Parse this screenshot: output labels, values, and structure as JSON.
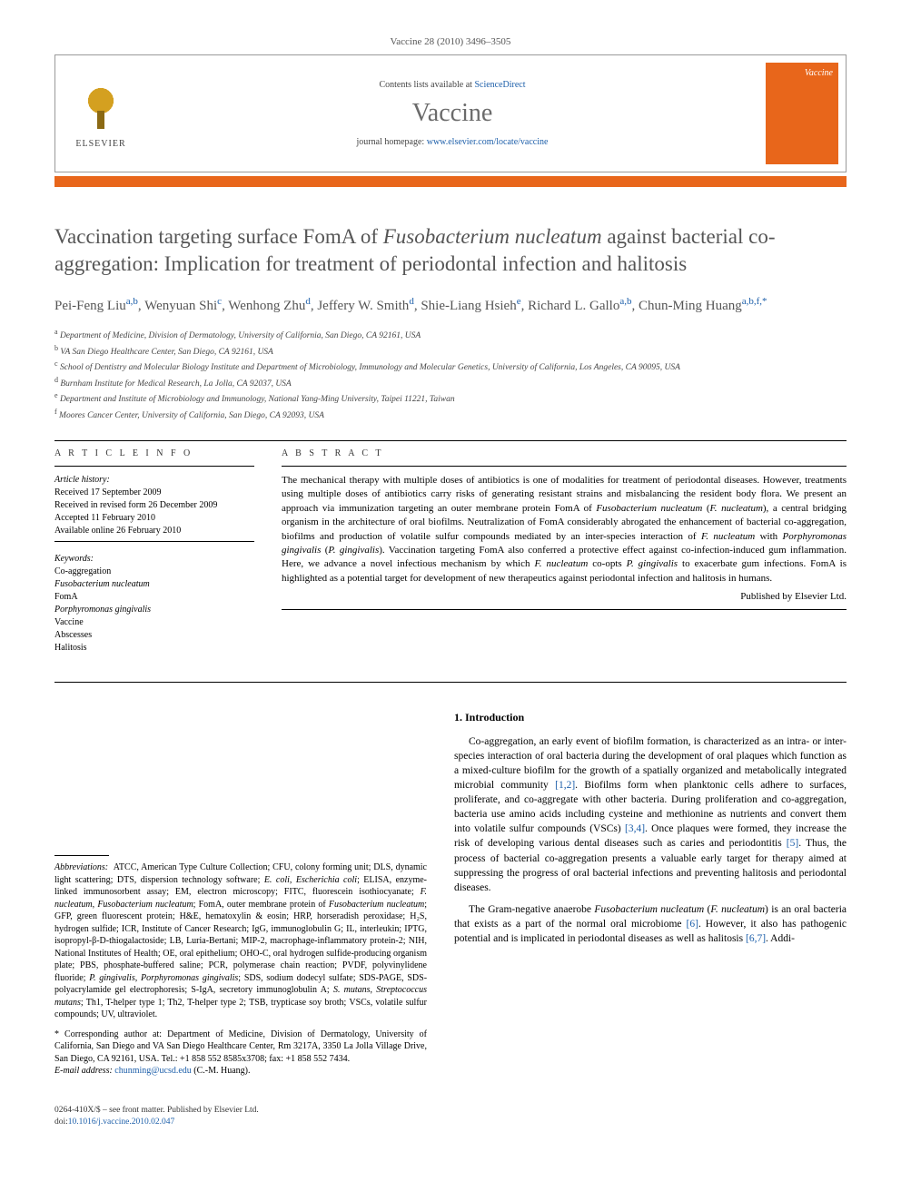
{
  "journal_ref": "Vaccine 28 (2010) 3496–3505",
  "header": {
    "contents_prefix": "Contents lists available at ",
    "contents_link": "ScienceDirect",
    "journal_name": "Vaccine",
    "homepage_prefix": "journal homepage: ",
    "homepage_link": "www.elsevier.com/locate/vaccine",
    "elsevier": "ELSEVIER",
    "cover_label": "Vaccine"
  },
  "title_part1": "Vaccination targeting surface FomA of ",
  "title_italic": "Fusobacterium nucleatum",
  "title_part2": " against bacterial co-aggregation: Implication for treatment of periodontal infection and halitosis",
  "authors_html": "Pei-Feng Liu|a,b|, Wenyuan Shi|c|, Wenhong Zhu|d|, Jeffery W. Smith|d|, Shie-Liang Hsieh|e|, Richard L. Gallo|a,b|, Chun-Ming Huang|a,b,f,*|",
  "authors": [
    {
      "name": "Pei-Feng Liu",
      "aff": "a,b"
    },
    {
      "name": "Wenyuan Shi",
      "aff": "c"
    },
    {
      "name": "Wenhong Zhu",
      "aff": "d"
    },
    {
      "name": "Jeffery W. Smith",
      "aff": "d"
    },
    {
      "name": "Shie-Liang Hsieh",
      "aff": "e"
    },
    {
      "name": "Richard L. Gallo",
      "aff": "a,b"
    },
    {
      "name": "Chun-Ming Huang",
      "aff": "a,b,f,*"
    }
  ],
  "affiliations": [
    {
      "sup": "a",
      "text": "Department of Medicine, Division of Dermatology, University of California, San Diego, CA 92161, USA"
    },
    {
      "sup": "b",
      "text": "VA San Diego Healthcare Center, San Diego, CA 92161, USA"
    },
    {
      "sup": "c",
      "text": "School of Dentistry and Molecular Biology Institute and Department of Microbiology, Immunology and Molecular Genetics, University of California, Los Angeles, CA 90095, USA"
    },
    {
      "sup": "d",
      "text": "Burnham Institute for Medical Research, La Jolla, CA 92037, USA"
    },
    {
      "sup": "e",
      "text": "Department and Institute of Microbiology and Immunology, National Yang-Ming University, Taipei 11221, Taiwan"
    },
    {
      "sup": "f",
      "text": "Moores Cancer Center, University of California, San Diego, CA 92093, USA"
    }
  ],
  "article_info": {
    "label": "A R T I C L E   I N F O",
    "history_label": "Article history:",
    "received": "Received 17 September 2009",
    "revised": "Received in revised form 26 December 2009",
    "accepted": "Accepted 11 February 2010",
    "online": "Available online 26 February 2010",
    "keywords_label": "Keywords:",
    "keywords": [
      "Co-aggregation",
      "Fusobacterium nucleatum",
      "FomA",
      "Porphyromonas gingivalis",
      "Vaccine",
      "Abscesses",
      "Halitosis"
    ]
  },
  "abstract": {
    "label": "A B S T R A C T",
    "text": "The mechanical therapy with multiple doses of antibiotics is one of modalities for treatment of periodontal diseases. However, treatments using multiple doses of antibiotics carry risks of generating resistant strains and misbalancing the resident body flora. We present an approach via immunization targeting an outer membrane protein FomA of Fusobacterium nucleatum (F. nucleatum), a central bridging organism in the architecture of oral biofilms. Neutralization of FomA considerably abrogated the enhancement of bacterial co-aggregation, biofilms and production of volatile sulfur compounds mediated by an inter-species interaction of F. nucleatum with Porphyromonas gingivalis (P. gingivalis). Vaccination targeting FomA also conferred a protective effect against co-infection-induced gum inflammation. Here, we advance a novel infectious mechanism by which F. nucleatum co-opts P. gingivalis to exacerbate gum infections. FomA is highlighted as a potential target for development of new therapeutics against periodontal infection and halitosis in humans.",
    "publisher": "Published by Elsevier Ltd."
  },
  "abbreviations": {
    "label": "Abbreviations:",
    "text": "ATCC, American Type Culture Collection; CFU, colony forming unit; DLS, dynamic light scattering; DTS, dispersion technology software; E. coli, Escherichia coli; ELISA, enzyme-linked immunosorbent assay; EM, electron microscopy; FITC, fluorescein isothiocyanate; F. nucleatum, Fusobacterium nucleatum; FomA, outer membrane protein of Fusobacterium nucleatum; GFP, green fluorescent protein; H&E, hematoxylin & eosin; HRP, horseradish peroxidase; H₂S, hydrogen sulfide; ICR, Institute of Cancer Research; IgG, immunoglobulin G; IL, interleukin; IPTG, isopropyl-β-D-thiogalactoside; LB, Luria-Bertani; MIP-2, macrophage-inflammatory protein-2; NIH, National Institutes of Health; OE, oral epithelium; OHO-C, oral hydrogen sulfide-producing organism plate; PBS, phosphate-buffered saline; PCR, polymerase chain reaction; PVDF, polyvinylidene fluoride; P. gingivalis, Porphyromonas gingivalis; SDS, sodium dodecyl sulfate; SDS-PAGE, SDS-polyacrylamide gel electrophoresis; S-IgA, secretory immunoglobulin A; S. mutans, Streptococcus mutans; Th1, T-helper type 1; Th2, T-helper type 2; TSB, trypticase soy broth; VSCs, volatile sulfur compounds; UV, ultraviolet."
  },
  "corresponding": {
    "label": "* Corresponding author at:",
    "text": "Department of Medicine, Division of Dermatology, University of California, San Diego and VA San Diego Healthcare Center, Rm 3217A, 3350 La Jolla Village Drive, San Diego, CA 92161, USA. Tel.: +1 858 552 8585x3708; fax: +1 858 552 7434.",
    "email_label": "E-mail address:",
    "email": "chunming@ucsd.edu",
    "email_suffix": "(C.-M. Huang)."
  },
  "intro": {
    "heading": "1. Introduction",
    "para1": "Co-aggregation, an early event of biofilm formation, is characterized as an intra- or inter-species interaction of oral bacteria during the development of oral plaques which function as a mixed-culture biofilm for the growth of a spatially organized and metabolically integrated microbial community [1,2]. Biofilms form when planktonic cells adhere to surfaces, proliferate, and co-aggregate with other bacteria. During proliferation and co-aggregation, bacteria use amino acids including cysteine and methionine as nutrients and convert them into volatile sulfur compounds (VSCs) [3,4]. Once plaques were formed, they increase the risk of developing various dental diseases such as caries and periodontitis [5]. Thus, the process of bacterial co-aggregation presents a valuable early target for therapy aimed at suppressing the progress of oral bacterial infections and preventing halitosis and periodontal diseases.",
    "para2": "The Gram-negative anaerobe Fusobacterium nucleatum (F. nucleatum) is an oral bacteria that exists as a part of the normal oral microbiome [6]. However, it also has pathogenic potential and is implicated in periodontal diseases as well as halitosis [6,7]. Addi-",
    "refs": {
      "r12": "[1,2]",
      "r34": "[3,4]",
      "r5": "[5]",
      "r6": "[6]",
      "r67": "[6,7]"
    }
  },
  "footer": {
    "issn": "0264-410X/$ – see front matter. Published by Elsevier Ltd.",
    "doi_label": "doi:",
    "doi": "10.1016/j.vaccine.2010.02.047"
  }
}
